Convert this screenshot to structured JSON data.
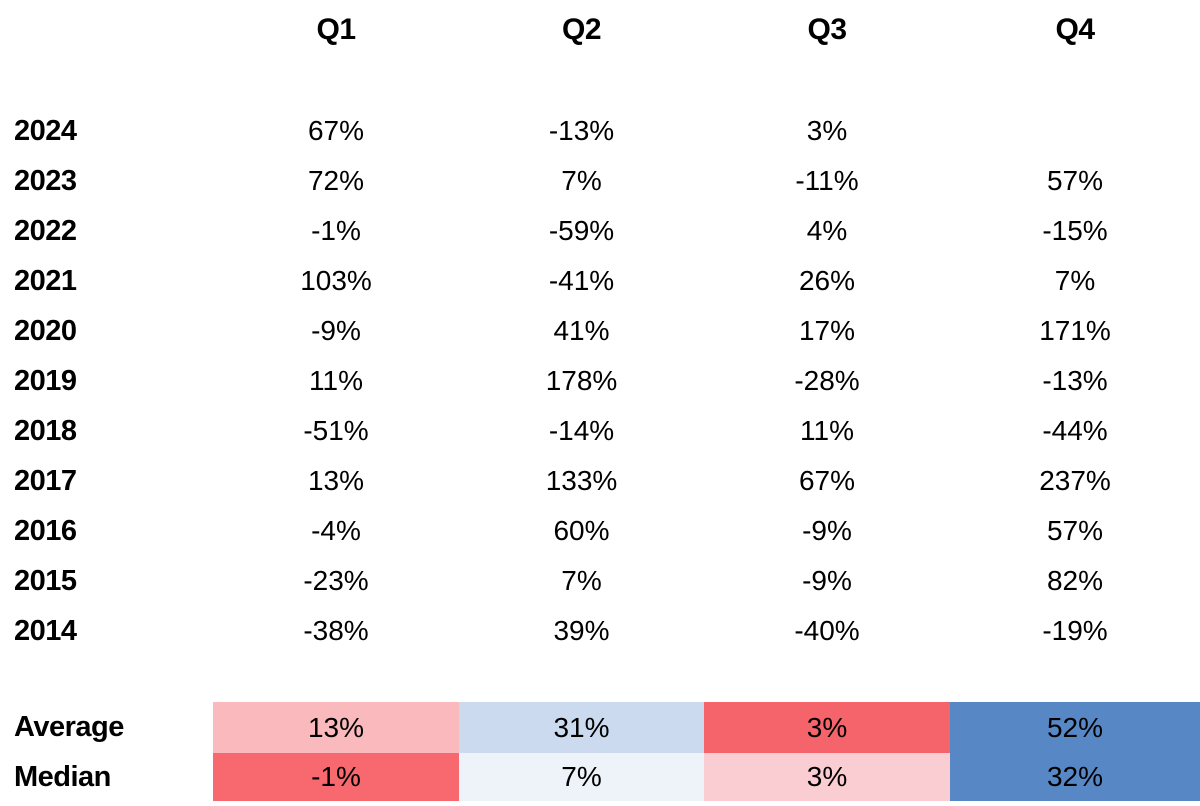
{
  "chart_data": {
    "type": "table",
    "title": "",
    "columns": [
      "Q1",
      "Q2",
      "Q3",
      "Q4"
    ],
    "row_labels": [
      "2024",
      "2023",
      "2022",
      "2021",
      "2020",
      "2019",
      "2018",
      "2017",
      "2016",
      "2015",
      "2014"
    ],
    "values_pct": [
      [
        67,
        -13,
        3,
        null
      ],
      [
        72,
        7,
        -11,
        57
      ],
      [
        -1,
        -59,
        4,
        -15
      ],
      [
        103,
        -41,
        26,
        7
      ],
      [
        -9,
        41,
        17,
        171
      ],
      [
        11,
        178,
        -28,
        -13
      ],
      [
        -51,
        -14,
        11,
        -44
      ],
      [
        13,
        133,
        67,
        237
      ],
      [
        -4,
        60,
        -9,
        57
      ],
      [
        -23,
        7,
        -9,
        82
      ],
      [
        -38,
        39,
        -40,
        -19
      ]
    ],
    "summary_rows": [
      {
        "label": "Average",
        "values_pct": [
          13,
          31,
          3,
          52
        ]
      },
      {
        "label": "Median",
        "values_pct": [
          -1,
          7,
          3,
          32
        ]
      }
    ],
    "heatmap_colors": {
      "average": [
        "#FAB9BC",
        "#CBDAEF",
        "#F4646A",
        "#5887C5"
      ],
      "median": [
        "#F7696E",
        "#EEF2F9",
        "#F9CDD1",
        "#5887C5"
      ]
    }
  },
  "table": {
    "columns": [
      "Q1",
      "Q2",
      "Q3",
      "Q4"
    ],
    "rows": [
      {
        "label": "2024",
        "values": [
          "67%",
          "-13%",
          "3%",
          ""
        ]
      },
      {
        "label": "2023",
        "values": [
          "72%",
          "7%",
          "-11%",
          "57%"
        ]
      },
      {
        "label": "2022",
        "values": [
          "-1%",
          "-59%",
          "4%",
          "-15%"
        ]
      },
      {
        "label": "2021",
        "values": [
          "103%",
          "-41%",
          "26%",
          "7%"
        ]
      },
      {
        "label": "2020",
        "values": [
          "-9%",
          "41%",
          "17%",
          "171%"
        ]
      },
      {
        "label": "2019",
        "values": [
          "11%",
          "178%",
          "-28%",
          "-13%"
        ]
      },
      {
        "label": "2018",
        "values": [
          "-51%",
          "-14%",
          "11%",
          "-44%"
        ]
      },
      {
        "label": "2017",
        "values": [
          "13%",
          "133%",
          "67%",
          "237%"
        ]
      },
      {
        "label": "2016",
        "values": [
          "-4%",
          "60%",
          "-9%",
          "57%"
        ]
      },
      {
        "label": "2015",
        "values": [
          "-23%",
          "7%",
          "-9%",
          "82%"
        ]
      },
      {
        "label": "2014",
        "values": [
          "-38%",
          "39%",
          "-40%",
          "-19%"
        ]
      }
    ],
    "summary": [
      {
        "label": "Average",
        "values": [
          "13%",
          "31%",
          "3%",
          "52%"
        ],
        "colors": [
          "#FAB9BC",
          "#CBDAEF",
          "#F4646A",
          "#5887C5"
        ]
      },
      {
        "label": "Median",
        "values": [
          "-1%",
          "7%",
          "3%",
          "32%"
        ],
        "colors": [
          "#F7696E",
          "#EEF2F9",
          "#F9CDD1",
          "#5887C5"
        ]
      }
    ]
  }
}
